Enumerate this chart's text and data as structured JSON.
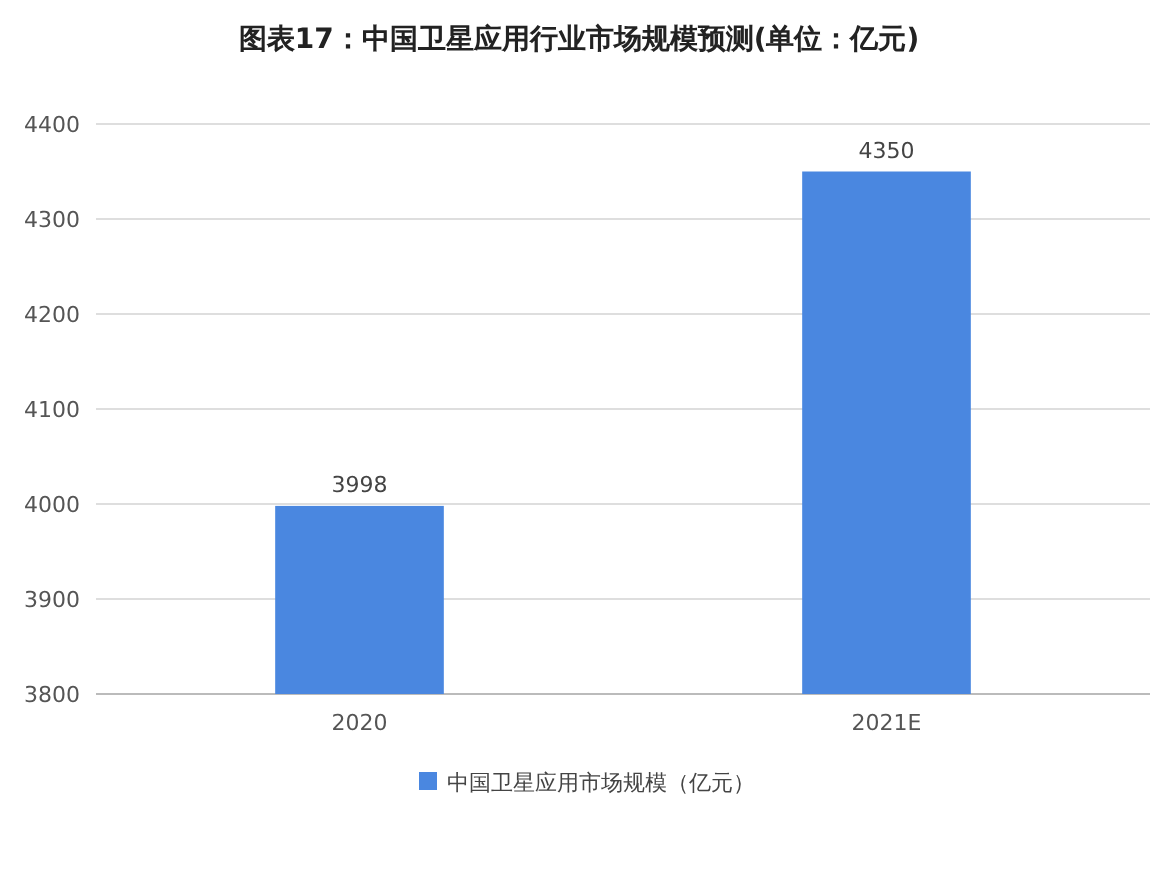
{
  "chart_data": {
    "type": "bar",
    "title": "图表17：中国卫星应用行业市场规模预测(单位：亿元)",
    "categories": [
      "2020",
      "2021E"
    ],
    "series": [
      {
        "name": "中国卫星应用市场规模（亿元）",
        "color": "#4a87e0",
        "values": [
          3998,
          4350
        ]
      }
    ],
    "ylim": [
      3800,
      4400
    ],
    "yticks": [
      3800,
      3900,
      4000,
      4100,
      4200,
      4300,
      4400
    ],
    "grid": "y",
    "legend": "bottom",
    "data_labels": true
  }
}
